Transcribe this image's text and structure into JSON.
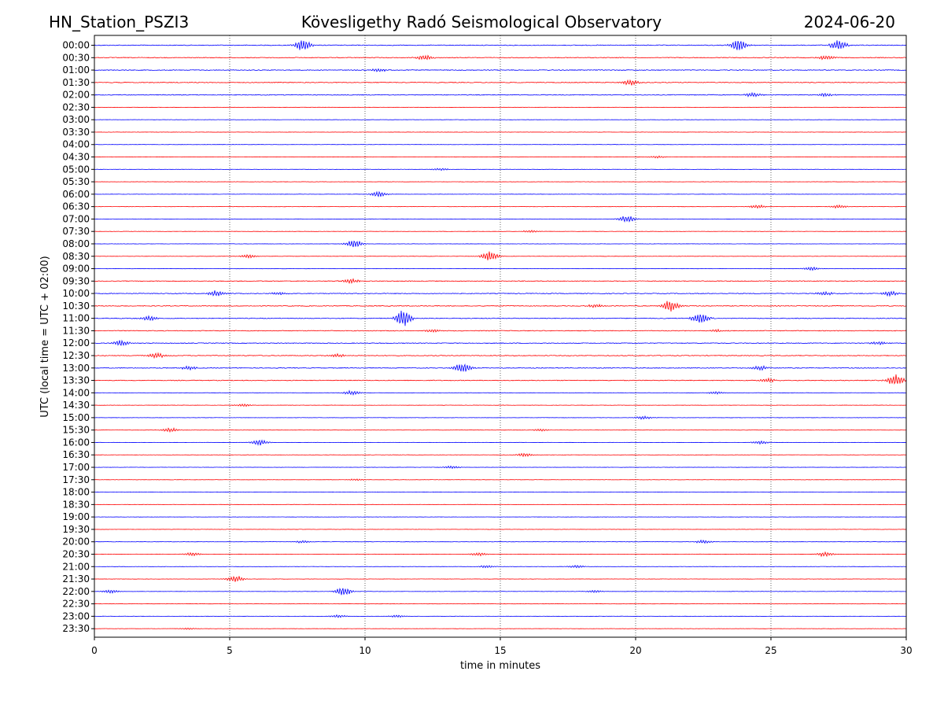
{
  "header": {
    "station": "HN_Station_PSZI3",
    "observatory": "Kövesligethy Radó Seismological Observatory",
    "date": "2024-06-20"
  },
  "chart_data": {
    "type": "line",
    "title": "Kövesligethy Radó Seismological Observatory",
    "xlabel": "time in minutes",
    "ylabel": "UTC (local time = UTC + 02:00)",
    "xlim": [
      0,
      30
    ],
    "x_ticks": [
      "0",
      "5",
      "10",
      "15",
      "20",
      "25",
      "30"
    ],
    "x_tick_values": [
      0,
      5,
      10,
      15,
      20,
      25,
      30
    ],
    "grid": "vertical dotted at x ticks",
    "trace_colors": [
      "#0000ff",
      "#ff0000"
    ],
    "rows": [
      {
        "label": "00:00",
        "events": [
          {
            "x": 7.7,
            "a": 0.5
          },
          {
            "x": 23.8,
            "a": 0.5
          },
          {
            "x": 27.5,
            "a": 0.45
          }
        ]
      },
      {
        "label": "00:30",
        "events": [
          {
            "x": 12.2,
            "a": 0.25
          },
          {
            "x": 27.0,
            "a": 0.2
          }
        ]
      },
      {
        "label": "01:00",
        "events": [
          {
            "x": 10.5,
            "a": 0.15
          }
        ]
      },
      {
        "label": "01:30",
        "events": [
          {
            "x": 19.8,
            "a": 0.25
          }
        ]
      },
      {
        "label": "02:00",
        "events": [
          {
            "x": 24.3,
            "a": 0.2
          },
          {
            "x": 27.0,
            "a": 0.15
          }
        ]
      },
      {
        "label": "02:30",
        "events": []
      },
      {
        "label": "03:00",
        "events": []
      },
      {
        "label": "03:30",
        "events": []
      },
      {
        "label": "04:00",
        "events": []
      },
      {
        "label": "04:30",
        "events": [
          {
            "x": 20.8,
            "a": 0.1
          }
        ]
      },
      {
        "label": "05:00",
        "events": [
          {
            "x": 12.8,
            "a": 0.1
          }
        ]
      },
      {
        "label": "05:30",
        "events": []
      },
      {
        "label": "06:00",
        "events": [
          {
            "x": 10.5,
            "a": 0.25
          }
        ]
      },
      {
        "label": "06:30",
        "events": [
          {
            "x": 24.5,
            "a": 0.15
          },
          {
            "x": 27.5,
            "a": 0.15
          }
        ]
      },
      {
        "label": "07:00",
        "events": [
          {
            "x": 19.7,
            "a": 0.3
          }
        ]
      },
      {
        "label": "07:30",
        "events": [
          {
            "x": 16.1,
            "a": 0.1
          }
        ]
      },
      {
        "label": "08:00",
        "events": [
          {
            "x": 9.6,
            "a": 0.35
          }
        ]
      },
      {
        "label": "08:30",
        "events": [
          {
            "x": 5.7,
            "a": 0.15
          },
          {
            "x": 14.6,
            "a": 0.45
          }
        ]
      },
      {
        "label": "09:00",
        "events": [
          {
            "x": 26.5,
            "a": 0.15
          }
        ]
      },
      {
        "label": "09:30",
        "events": [
          {
            "x": 9.5,
            "a": 0.2
          }
        ]
      },
      {
        "label": "10:00",
        "events": [
          {
            "x": 4.5,
            "a": 0.25
          },
          {
            "x": 6.8,
            "a": 0.12
          },
          {
            "x": 27.0,
            "a": 0.15
          },
          {
            "x": 29.4,
            "a": 0.2
          }
        ]
      },
      {
        "label": "10:30",
        "events": [
          {
            "x": 21.3,
            "a": 0.5
          },
          {
            "x": 18.5,
            "a": 0.15
          }
        ]
      },
      {
        "label": "11:00",
        "events": [
          {
            "x": 11.4,
            "a": 0.7
          },
          {
            "x": 22.4,
            "a": 0.5
          },
          {
            "x": 2.0,
            "a": 0.2
          }
        ]
      },
      {
        "label": "11:30",
        "events": [
          {
            "x": 12.5,
            "a": 0.12
          },
          {
            "x": 23.0,
            "a": 0.12
          }
        ]
      },
      {
        "label": "12:00",
        "events": [
          {
            "x": 1.0,
            "a": 0.25
          },
          {
            "x": 29.0,
            "a": 0.15
          }
        ]
      },
      {
        "label": "12:30",
        "events": [
          {
            "x": 2.3,
            "a": 0.25
          },
          {
            "x": 9.0,
            "a": 0.15
          }
        ]
      },
      {
        "label": "13:00",
        "events": [
          {
            "x": 13.6,
            "a": 0.45
          },
          {
            "x": 24.6,
            "a": 0.2
          },
          {
            "x": 3.5,
            "a": 0.15
          }
        ]
      },
      {
        "label": "13:30",
        "events": [
          {
            "x": 24.9,
            "a": 0.2
          },
          {
            "x": 29.6,
            "a": 0.5
          }
        ]
      },
      {
        "label": "14:00",
        "events": [
          {
            "x": 9.5,
            "a": 0.2
          },
          {
            "x": 23.0,
            "a": 0.12
          }
        ]
      },
      {
        "label": "14:30",
        "events": [
          {
            "x": 5.5,
            "a": 0.12
          }
        ]
      },
      {
        "label": "15:00",
        "events": [
          {
            "x": 20.3,
            "a": 0.15
          }
        ]
      },
      {
        "label": "15:30",
        "events": [
          {
            "x": 2.8,
            "a": 0.2
          },
          {
            "x": 16.5,
            "a": 0.1
          }
        ]
      },
      {
        "label": "16:00",
        "events": [
          {
            "x": 6.1,
            "a": 0.25
          },
          {
            "x": 24.6,
            "a": 0.15
          }
        ]
      },
      {
        "label": "16:30",
        "events": [
          {
            "x": 15.9,
            "a": 0.15
          }
        ]
      },
      {
        "label": "17:00",
        "events": [
          {
            "x": 13.2,
            "a": 0.12
          }
        ]
      },
      {
        "label": "17:30",
        "events": [
          {
            "x": 9.7,
            "a": 0.08
          }
        ]
      },
      {
        "label": "18:00",
        "events": []
      },
      {
        "label": "18:30",
        "events": []
      },
      {
        "label": "19:00",
        "events": []
      },
      {
        "label": "19:30",
        "events": []
      },
      {
        "label": "20:00",
        "events": [
          {
            "x": 22.5,
            "a": 0.15
          },
          {
            "x": 7.7,
            "a": 0.1
          }
        ]
      },
      {
        "label": "20:30",
        "events": [
          {
            "x": 3.6,
            "a": 0.15
          },
          {
            "x": 14.2,
            "a": 0.15
          },
          {
            "x": 27.0,
            "a": 0.2
          }
        ]
      },
      {
        "label": "21:00",
        "events": [
          {
            "x": 14.5,
            "a": 0.12
          },
          {
            "x": 17.8,
            "a": 0.12
          }
        ]
      },
      {
        "label": "21:30",
        "events": [
          {
            "x": 5.2,
            "a": 0.3
          }
        ]
      },
      {
        "label": "22:00",
        "events": [
          {
            "x": 9.2,
            "a": 0.35
          },
          {
            "x": 0.6,
            "a": 0.15
          },
          {
            "x": 18.5,
            "a": 0.1
          }
        ]
      },
      {
        "label": "22:30",
        "events": []
      },
      {
        "label": "23:00",
        "events": [
          {
            "x": 9.0,
            "a": 0.12
          },
          {
            "x": 11.2,
            "a": 0.1
          }
        ]
      },
      {
        "label": "23:30",
        "events": [
          {
            "x": 3.5,
            "a": 0.08
          }
        ]
      }
    ]
  }
}
